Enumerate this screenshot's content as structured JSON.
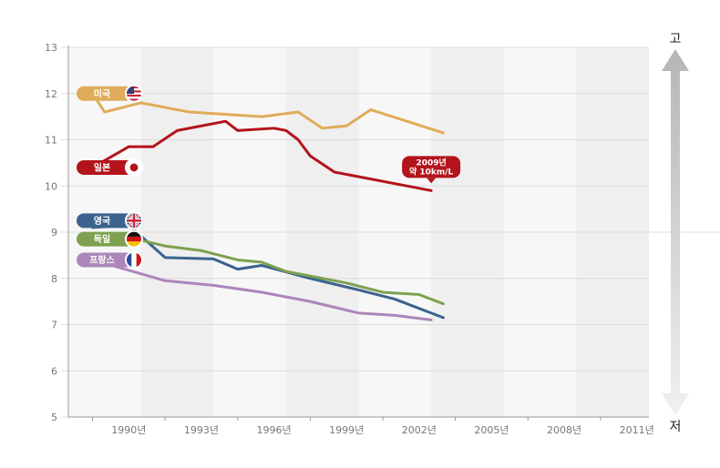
{
  "chart_data": {
    "type": "line",
    "title": "",
    "xlabel": "",
    "ylabel": "",
    "ylim": [
      5,
      13
    ],
    "yticks": [
      "5",
      "6",
      "7",
      "8",
      "9",
      "10",
      "11",
      "12",
      "13"
    ],
    "x_range": [
      1989,
      2013
    ],
    "xticks": [
      {
        "year": 1990,
        "label": "1990년"
      },
      {
        "year": 1993,
        "label": "1993년"
      },
      {
        "year": 1996,
        "label": "1996년"
      },
      {
        "year": 1999,
        "label": "1999년"
      },
      {
        "year": 2002,
        "label": "2002년"
      },
      {
        "year": 2005,
        "label": "2005년"
      },
      {
        "year": 2008,
        "label": "2008년"
      },
      {
        "year": 2011,
        "label": "2011년"
      }
    ],
    "series": [
      {
        "name": "미국",
        "color": "#e0ac5a",
        "flag": "us-flag",
        "points": [
          [
            1990,
            12.0
          ],
          [
            1990.5,
            11.6
          ],
          [
            1992,
            11.8
          ],
          [
            1994,
            11.6
          ],
          [
            1997,
            11.5
          ],
          [
            1998.5,
            11.6
          ],
          [
            1999.5,
            11.25
          ],
          [
            2000.5,
            11.3
          ],
          [
            2001.5,
            11.65
          ],
          [
            2003,
            11.4
          ],
          [
            2004.5,
            11.15
          ]
        ]
      },
      {
        "name": "일본",
        "color": "#b3141c",
        "flag": "jp-flag",
        "points": [
          [
            1990,
            10.4
          ],
          [
            1991.5,
            10.85
          ],
          [
            1992.5,
            10.85
          ],
          [
            1993.5,
            11.2
          ],
          [
            1995.5,
            11.4
          ],
          [
            1996,
            11.2
          ],
          [
            1997.5,
            11.25
          ],
          [
            1998,
            11.2
          ],
          [
            1998.5,
            11.0
          ],
          [
            1999,
            10.65
          ],
          [
            2000,
            10.3
          ],
          [
            2004,
            9.9
          ]
        ]
      },
      {
        "name": "영국",
        "color": "#3b638e",
        "flag": "uk-flag",
        "points": [
          [
            1990,
            9.1
          ],
          [
            1991.5,
            9.15
          ],
          [
            1993,
            8.45
          ],
          [
            1995,
            8.42
          ],
          [
            1996,
            8.2
          ],
          [
            1997,
            8.28
          ],
          [
            1999,
            8.0
          ],
          [
            2001,
            7.75
          ],
          [
            2002.5,
            7.55
          ],
          [
            2004.5,
            7.15
          ]
        ]
      },
      {
        "name": "독일",
        "color": "#7da150",
        "flag": "de-flag",
        "points": [
          [
            1990,
            8.95
          ],
          [
            1991,
            8.95
          ],
          [
            1993,
            8.7
          ],
          [
            1994.5,
            8.6
          ],
          [
            1996,
            8.4
          ],
          [
            1997,
            8.35
          ],
          [
            1998,
            8.15
          ],
          [
            2000.5,
            7.9
          ],
          [
            2002,
            7.7
          ],
          [
            2003.5,
            7.65
          ],
          [
            2004.5,
            7.45
          ]
        ]
      },
      {
        "name": "프랑스",
        "color": "#ac86b9",
        "flag": "fr-flag",
        "points": [
          [
            1990,
            8.4
          ],
          [
            1991,
            8.25
          ],
          [
            1993,
            7.95
          ],
          [
            1995,
            7.85
          ],
          [
            1997,
            7.7
          ],
          [
            1999,
            7.5
          ],
          [
            2001,
            7.25
          ],
          [
            2002.5,
            7.2
          ],
          [
            2004,
            7.1
          ]
        ]
      }
    ],
    "callout": {
      "line1": "2009년",
      "line2": "약 10km/L",
      "series": "일본"
    },
    "grid": true,
    "legend": "inline-left"
  },
  "scale_arrow": {
    "top_label": "고",
    "bottom_label": "저"
  }
}
